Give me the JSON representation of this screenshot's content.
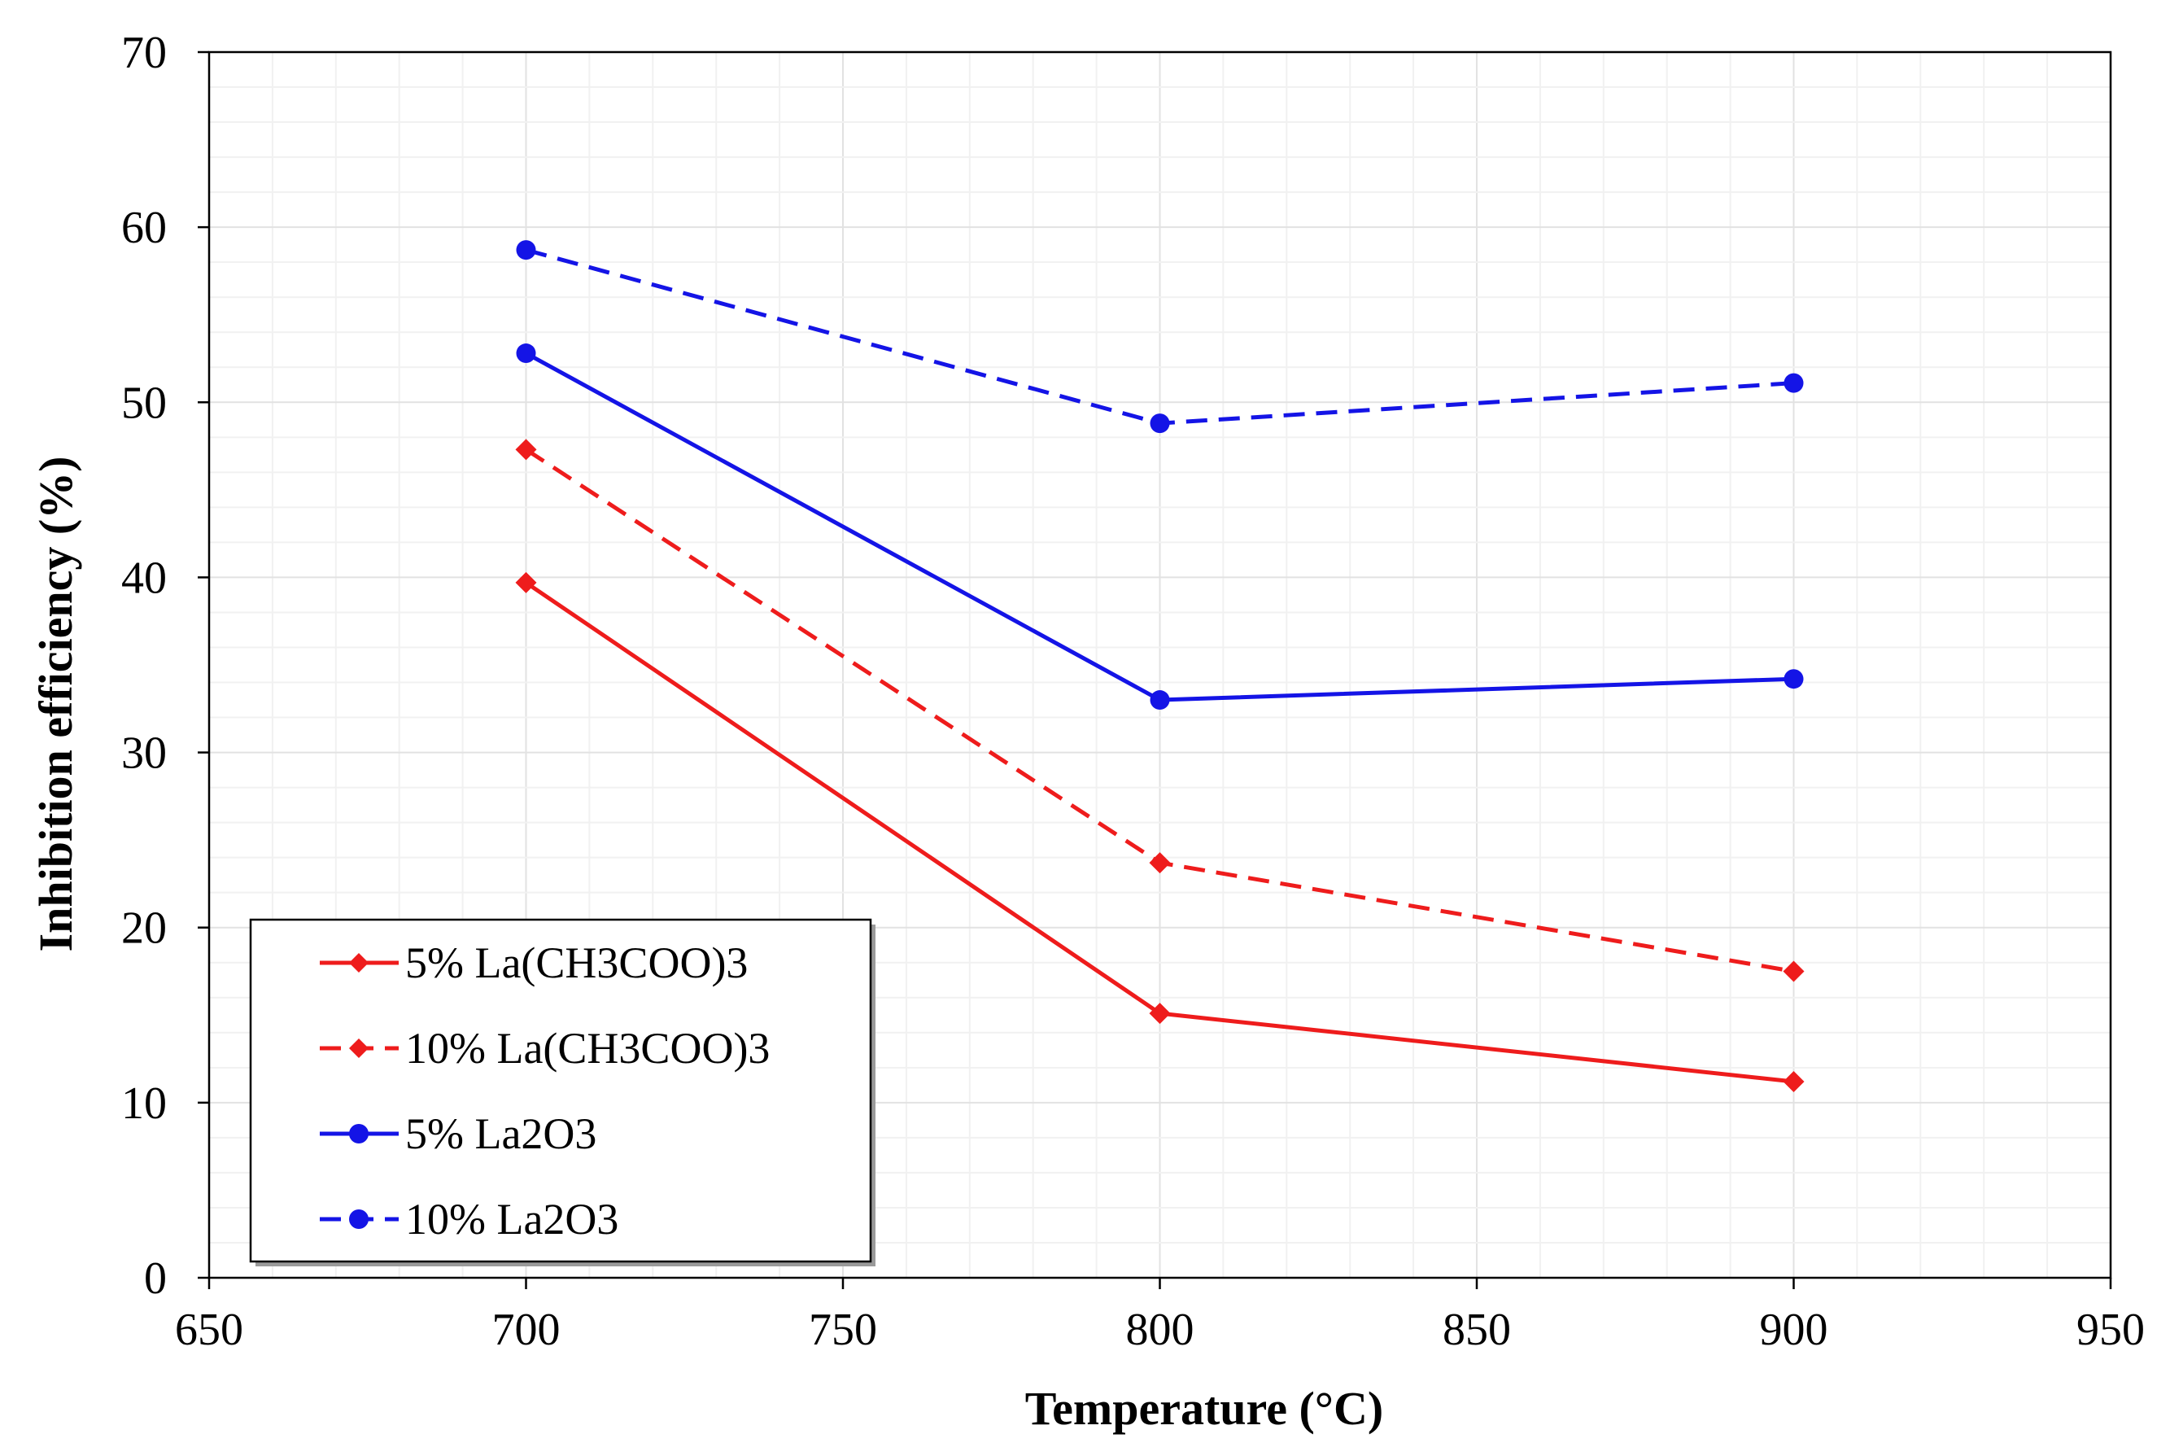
{
  "chart_data": {
    "type": "line",
    "title": "",
    "xlabel": "Temperature (°C)",
    "ylabel": "Inhibition efficiency (%)",
    "xlim": [
      650,
      950
    ],
    "ylim": [
      0,
      70
    ],
    "x_ticks": [
      "650",
      "700",
      "750",
      "800",
      "850",
      "900",
      "950"
    ],
    "y_ticks": [
      "0",
      "10",
      "20",
      "30",
      "40",
      "50",
      "60",
      "70"
    ],
    "grid": true,
    "legend_position": "bottom-left",
    "x": [
      700,
      800,
      900
    ],
    "series": [
      {
        "name": "5% La(CH3COO)3",
        "values": [
          39.7,
          15.1,
          11.2
        ],
        "color": "#ee1c1c",
        "line_style": "solid",
        "marker": "diamond"
      },
      {
        "name": "10% La(CH3COO)3",
        "values": [
          47.3,
          23.7,
          17.5
        ],
        "color": "#ee1c1c",
        "line_style": "dashed",
        "marker": "diamond"
      },
      {
        "name": "5% La2O3",
        "values": [
          52.8,
          33.0,
          34.2
        ],
        "color": "#1414e6",
        "line_style": "solid",
        "marker": "circle"
      },
      {
        "name": "10% La2O3",
        "values": [
          58.7,
          48.8,
          51.1
        ],
        "color": "#1414e6",
        "line_style": "dashed",
        "marker": "circle"
      }
    ]
  }
}
